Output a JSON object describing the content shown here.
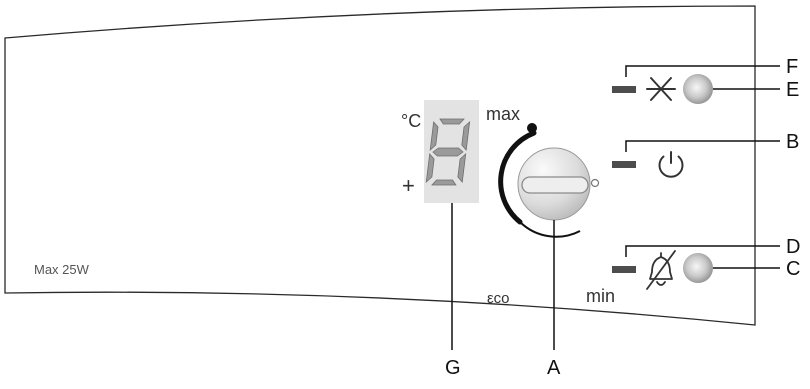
{
  "panel": {
    "note": "Max 25W",
    "colors": {
      "outline": "#2a2a2a",
      "led": "#4d4d4d",
      "display_bg": "#e3e3e3",
      "segment": "#9a9a9a",
      "knob_light": "#f4f4f4",
      "knob_dark": "#bdbdbd",
      "button_center": "#f7f7f7",
      "button_edge": "#8c8c8c"
    }
  },
  "thermostat": {
    "unit": "°C",
    "plus": "+",
    "digit": "8",
    "dial_max": "max",
    "dial_min": "min",
    "dial_eco": "εco"
  },
  "controls": {
    "frost_icon": "snowflake-icon",
    "power_icon": "power-icon",
    "alarm_icon": "bell-off-icon"
  },
  "callouts": {
    "F": "F",
    "E": "E",
    "B": "B",
    "D": "D",
    "C": "C",
    "G": "G",
    "A": "A"
  }
}
